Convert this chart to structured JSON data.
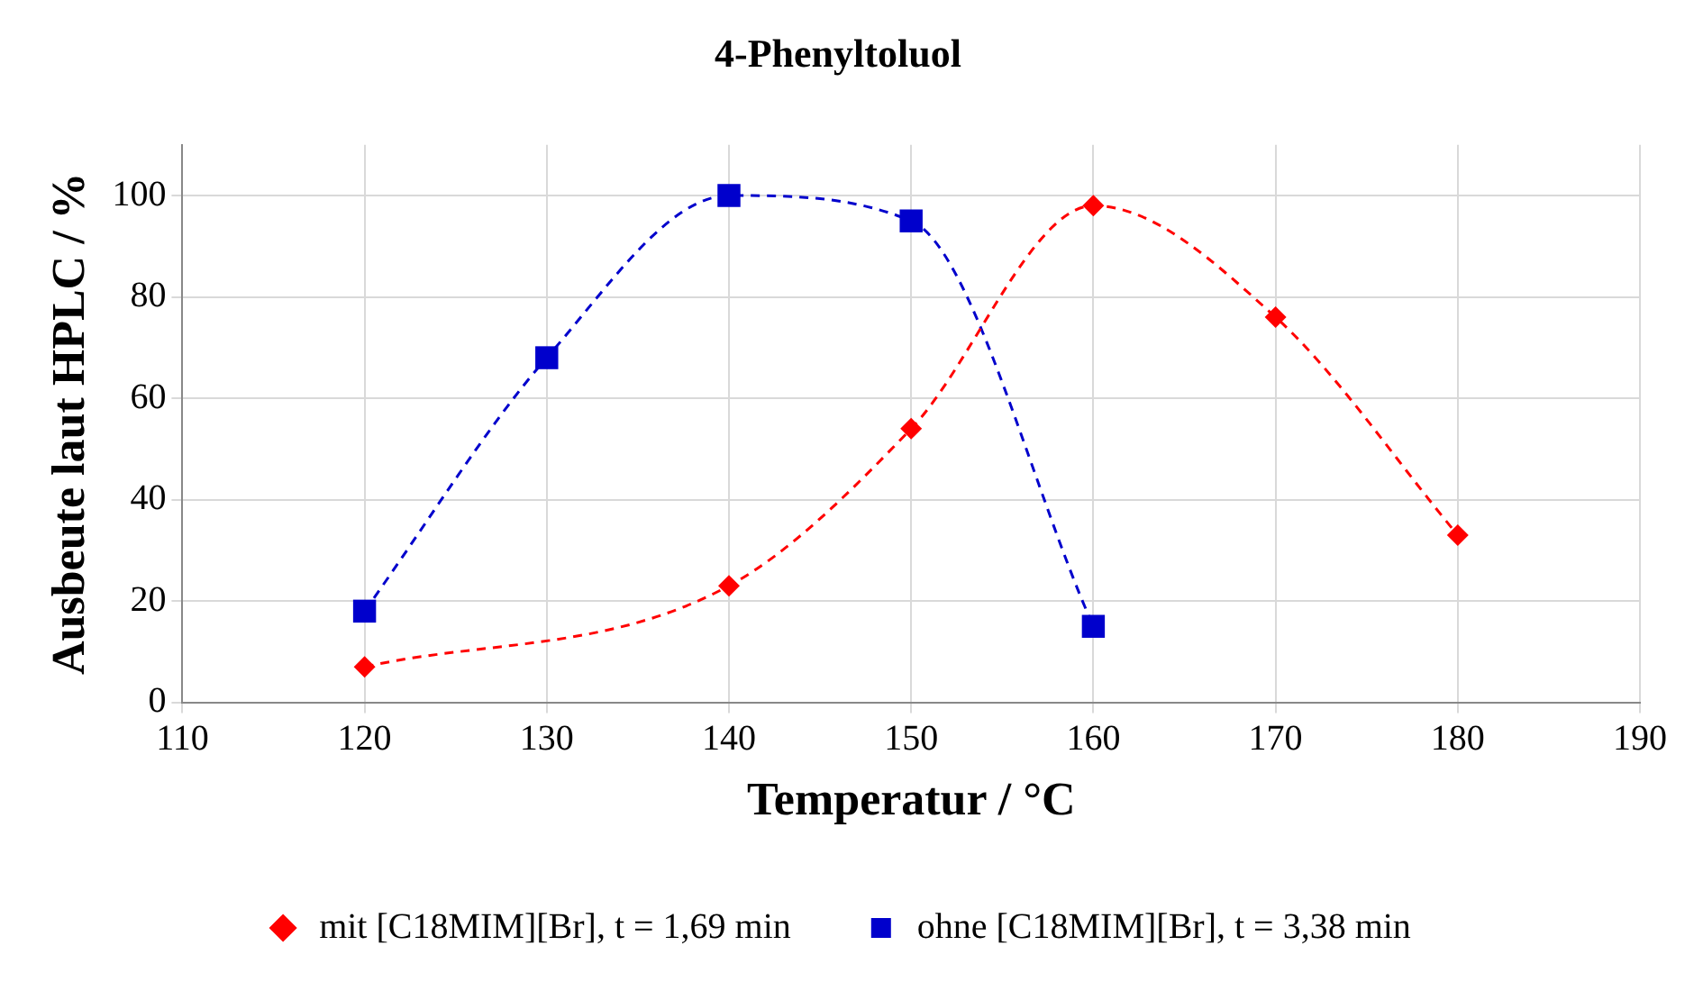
{
  "chart_data": {
    "type": "line",
    "title": "4-Phenyltoluol",
    "xlabel": "Temperatur / °C",
    "ylabel": "Ausbeute laut HPLC / %",
    "xlim": [
      110,
      190
    ],
    "xticks": [
      110,
      120,
      130,
      140,
      150,
      160,
      170,
      180,
      190
    ],
    "ylim": [
      0,
      110
    ],
    "yticks": [
      0,
      20,
      40,
      60,
      80,
      100
    ],
    "grid": true,
    "legend": "bottom",
    "line_style": "dashed",
    "series": [
      {
        "name": "mit [C18MIM][Br], t = 1,69 min",
        "color": "#ff0000",
        "marker": "diamond",
        "x": [
          120,
          140,
          150,
          160,
          170,
          180
        ],
        "values": [
          7,
          23,
          54,
          98,
          76,
          33
        ]
      },
      {
        "name": "ohne [C18MIM][Br], t = 3,38 min",
        "color": "#0000cc",
        "marker": "square",
        "x": [
          120,
          130,
          140,
          150,
          160
        ],
        "values": [
          18,
          68,
          100,
          95,
          15
        ]
      }
    ]
  }
}
